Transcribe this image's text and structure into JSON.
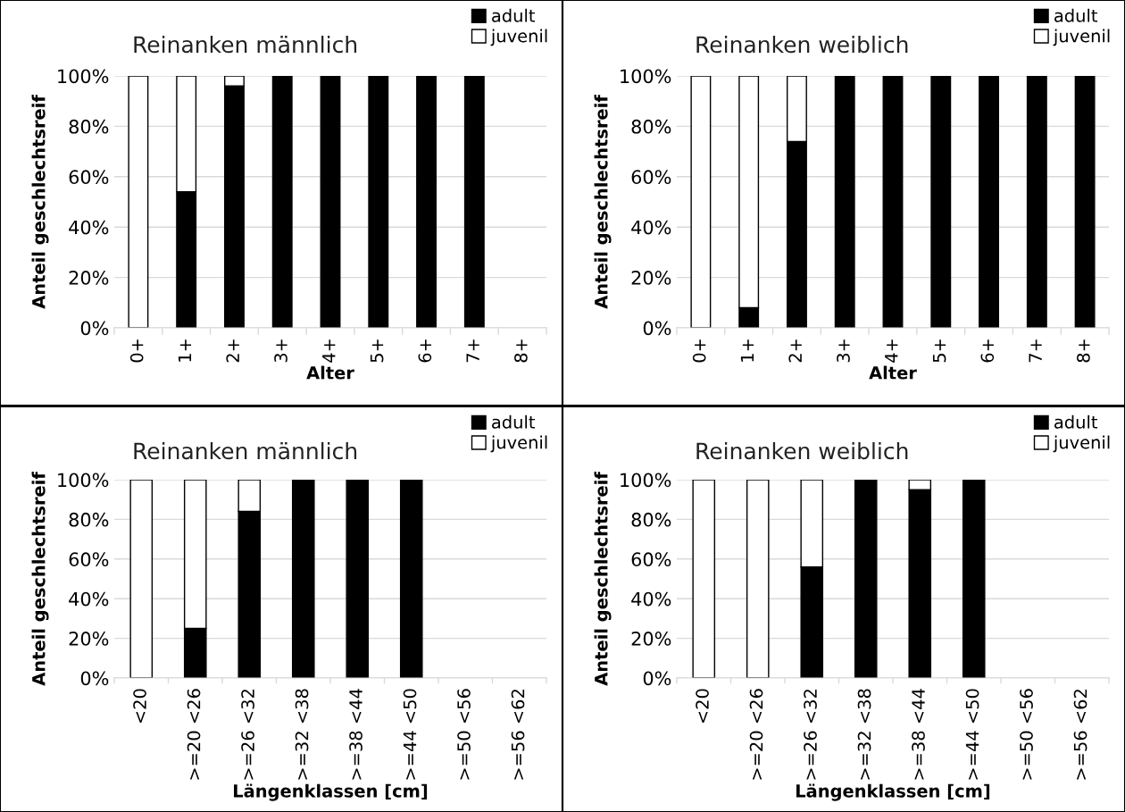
{
  "chart_data": [
    {
      "type": "bar",
      "stacked": true,
      "title": "Reinanken männlich",
      "xlabel": "Alter",
      "ylabel": "Anteil geschlechtsreif",
      "categories": [
        "0+",
        "1+",
        "2+",
        "3+",
        "4+",
        "5+",
        "6+",
        "7+",
        "8+"
      ],
      "series": [
        {
          "name": "adult",
          "color": "#000000",
          "values": [
            0,
            54,
            96,
            100,
            100,
            100,
            100,
            100,
            null
          ]
        },
        {
          "name": "juvenil",
          "color": "#ffffff",
          "values": [
            100,
            46,
            4,
            0,
            0,
            0,
            0,
            0,
            null
          ]
        }
      ],
      "ylim": [
        0,
        100
      ],
      "yticks": [
        {
          "value": 0,
          "label": "0%"
        },
        {
          "value": 20,
          "label": "20%"
        },
        {
          "value": 40,
          "label": "40%"
        },
        {
          "value": 60,
          "label": "60%"
        },
        {
          "value": 80,
          "label": "80%"
        },
        {
          "value": 100,
          "label": "100%"
        }
      ],
      "grid": "y",
      "legend": "top right"
    },
    {
      "type": "bar",
      "stacked": true,
      "title": "Reinanken weiblich",
      "xlabel": "Alter",
      "ylabel": "Anteil geschlechtsreif",
      "categories": [
        "0+",
        "1+",
        "2+",
        "3+",
        "4+",
        "5+",
        "6+",
        "7+",
        "8+"
      ],
      "series": [
        {
          "name": "adult",
          "color": "#000000",
          "values": [
            0,
            8,
            74,
            100,
            100,
            100,
            100,
            100,
            100
          ]
        },
        {
          "name": "juvenil",
          "color": "#ffffff",
          "values": [
            100,
            92,
            26,
            0,
            0,
            0,
            0,
            0,
            0
          ]
        }
      ],
      "ylim": [
        0,
        100
      ],
      "yticks": [
        {
          "value": 0,
          "label": "0%"
        },
        {
          "value": 20,
          "label": "20%"
        },
        {
          "value": 40,
          "label": "40%"
        },
        {
          "value": 60,
          "label": "60%"
        },
        {
          "value": 80,
          "label": "80%"
        },
        {
          "value": 100,
          "label": "100%"
        }
      ],
      "grid": "y",
      "legend": "top right"
    },
    {
      "type": "bar",
      "stacked": true,
      "title": "Reinanken männlich",
      "xlabel": "Längenklassen [cm]",
      "ylabel": "Anteil geschlechtsreif",
      "categories": [
        "<20",
        ">=20 <26",
        ">=26 <32",
        ">=32 <38",
        ">=38 <44",
        ">=44 <50",
        ">=50 <56",
        ">=56 <62"
      ],
      "series": [
        {
          "name": "adult",
          "color": "#000000",
          "values": [
            0,
            25,
            84,
            100,
            100,
            100,
            null,
            null
          ]
        },
        {
          "name": "juvenil",
          "color": "#ffffff",
          "values": [
            100,
            75,
            16,
            0,
            0,
            0,
            null,
            null
          ]
        }
      ],
      "ylim": [
        0,
        100
      ],
      "yticks": [
        {
          "value": 0,
          "label": "0%"
        },
        {
          "value": 20,
          "label": "20%"
        },
        {
          "value": 40,
          "label": "40%"
        },
        {
          "value": 60,
          "label": "60%"
        },
        {
          "value": 80,
          "label": "80%"
        },
        {
          "value": 100,
          "label": "100%"
        }
      ],
      "grid": "y",
      "legend": "top right"
    },
    {
      "type": "bar",
      "stacked": true,
      "title": "Reinanken weiblich",
      "xlabel": "Längenklassen [cm]",
      "ylabel": "Anteil geschlechtsreif",
      "categories": [
        "<20",
        ">=20 <26",
        ">=26 <32",
        ">=32 <38",
        ">=38 <44",
        ">=44 <50",
        ">=50 <56",
        ">=56 <62"
      ],
      "series": [
        {
          "name": "adult",
          "color": "#000000",
          "values": [
            0,
            0,
            56,
            100,
            95,
            100,
            null,
            null
          ]
        },
        {
          "name": "juvenil",
          "color": "#ffffff",
          "values": [
            100,
            100,
            44,
            0,
            5,
            0,
            null,
            null
          ]
        }
      ],
      "ylim": [
        0,
        100
      ],
      "yticks": [
        {
          "value": 0,
          "label": "0%"
        },
        {
          "value": 20,
          "label": "20%"
        },
        {
          "value": 40,
          "label": "40%"
        },
        {
          "value": 60,
          "label": "60%"
        },
        {
          "value": 80,
          "label": "80%"
        },
        {
          "value": 100,
          "label": "100%"
        }
      ],
      "grid": "y",
      "legend": "top right"
    }
  ]
}
